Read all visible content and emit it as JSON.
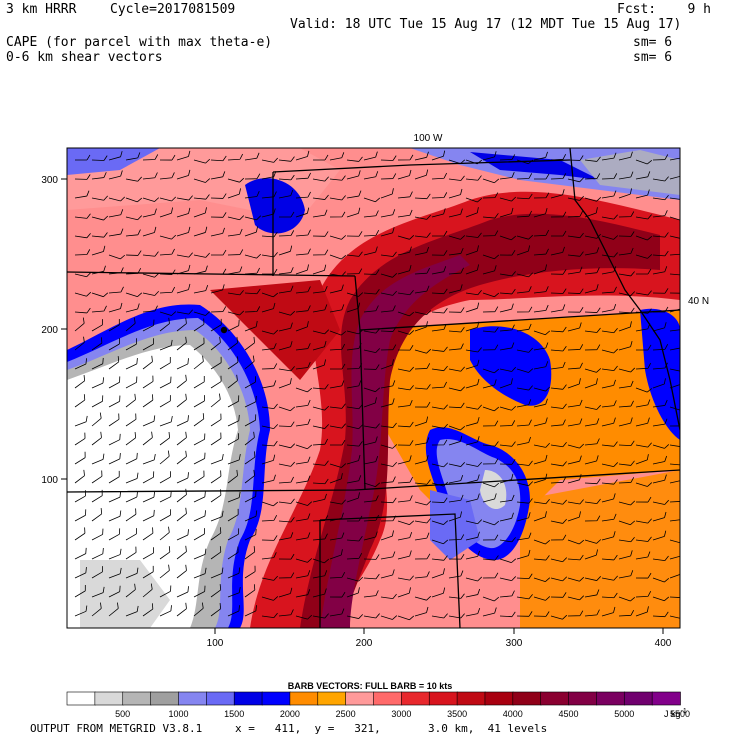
{
  "header": {
    "model": "3 km HRRR",
    "cycle": "Cycle=2017081509",
    "forecast": "Fcst:    9 h",
    "valid": "Valid: 18 UTC Tue 15 Aug 17 (12 MDT Tue 15 Aug 17)",
    "field1": "CAPE (for parcel with max theta-e)",
    "field1_smooth": "sm= 6",
    "field2": "0-6 km shear vectors",
    "field2_smooth": "sm= 6"
  },
  "map": {
    "longitude_label": "100 W",
    "latitude_label": "40 N",
    "x_ticks": [
      "100",
      "200",
      "300",
      "400"
    ],
    "y_ticks": [
      "300",
      "200",
      "100"
    ],
    "x_tick_values": [
      100,
      200,
      300,
      400
    ],
    "y_tick_values": [
      300,
      200,
      100
    ],
    "x_range": [
      1,
      411
    ],
    "y_range": [
      1,
      321
    ]
  },
  "legend": {
    "title": "BARB VECTORS:  FULL BARB = 10 kts",
    "labels": [
      "500",
      "1000",
      "1500",
      "2000",
      "2500",
      "3000",
      "3500",
      "4000",
      "4500",
      "5000",
      "5500"
    ],
    "units": "J kg",
    "units_exp": "-1",
    "colors": [
      "#ffffff",
      "#d9d9d9",
      "#b5b5b5",
      "#9f9f9f",
      "#8585f0",
      "#6a6af5",
      "#0000e6",
      "#0000ff",
      "#ff8c00",
      "#ffa500",
      "#ff9a9a",
      "#ff6a6a",
      "#e8282d",
      "#d8141e",
      "#c00a14",
      "#a80010",
      "#900018",
      "#8a0030",
      "#820045",
      "#7a0060",
      "#70006e",
      "#82008a"
    ]
  },
  "footer": {
    "source": "OUTPUT FROM METGRID V3.8.1",
    "dims": "x =   411,  y =   321,",
    "resolution": "3.0 km,  41 levels"
  }
}
